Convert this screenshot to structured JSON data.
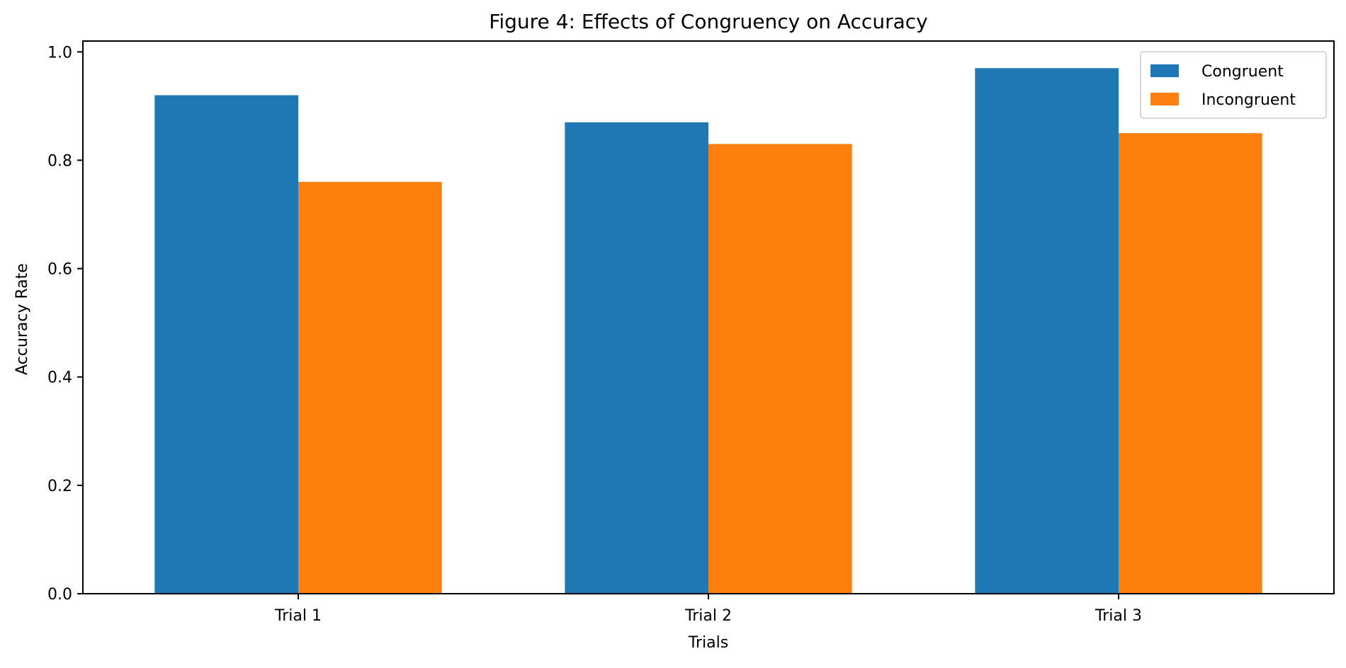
{
  "chart_data": {
    "type": "bar",
    "title": "Figure 4: Effects of Congruency on Accuracy",
    "xlabel": "Trials",
    "ylabel": "Accuracy Rate",
    "categories": [
      "Trial 1",
      "Trial 2",
      "Trial 3"
    ],
    "series": [
      {
        "name": "Congruent",
        "color": "#1f77b4",
        "values": [
          0.92,
          0.87,
          0.97
        ]
      },
      {
        "name": "Incongruent",
        "color": "#ff7f0e",
        "values": [
          0.76,
          0.83,
          0.85
        ]
      }
    ],
    "ylim": [
      0,
      1.02
    ],
    "yticks": [
      0.0,
      0.2,
      0.4,
      0.6,
      0.8,
      1.0
    ],
    "ytick_labels": [
      "0.0",
      "0.2",
      "0.4",
      "0.6",
      "0.8",
      "1.0"
    ],
    "grid": false,
    "legend_position": "top-right"
  }
}
